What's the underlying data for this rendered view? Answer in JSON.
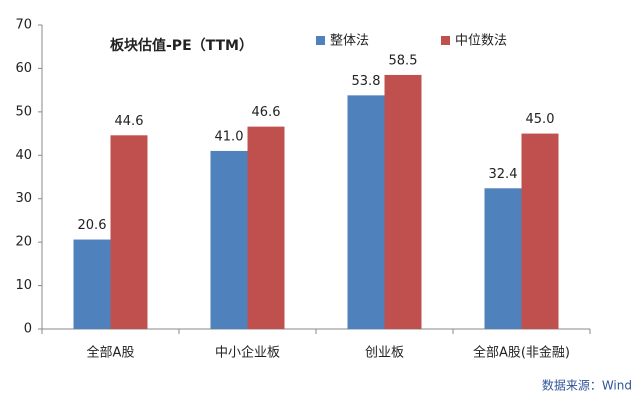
{
  "chart_data": {
    "type": "bar",
    "title": "板块估值-PE（TTM）",
    "categories": [
      "全部A股",
      "中小企业板",
      "创业板",
      "全部A股(非金融)"
    ],
    "series": [
      {
        "name": "整体法",
        "color": "#4f81bd",
        "values": [
          20.6,
          41.0,
          53.8,
          32.4
        ],
        "value_labels": [
          "20.6",
          "41.0",
          "53.8",
          "32.4"
        ]
      },
      {
        "name": "中位数法",
        "color": "#c0504d",
        "values": [
          44.6,
          46.6,
          58.5,
          45.0
        ],
        "value_labels": [
          "44.6",
          "46.6",
          "58.5",
          "45.0"
        ]
      }
    ],
    "ylim": [
      0,
      70
    ],
    "yticks": [
      0,
      10,
      20,
      30,
      40,
      50,
      60,
      70
    ],
    "grid": false,
    "source": "数据来源：Wind"
  }
}
